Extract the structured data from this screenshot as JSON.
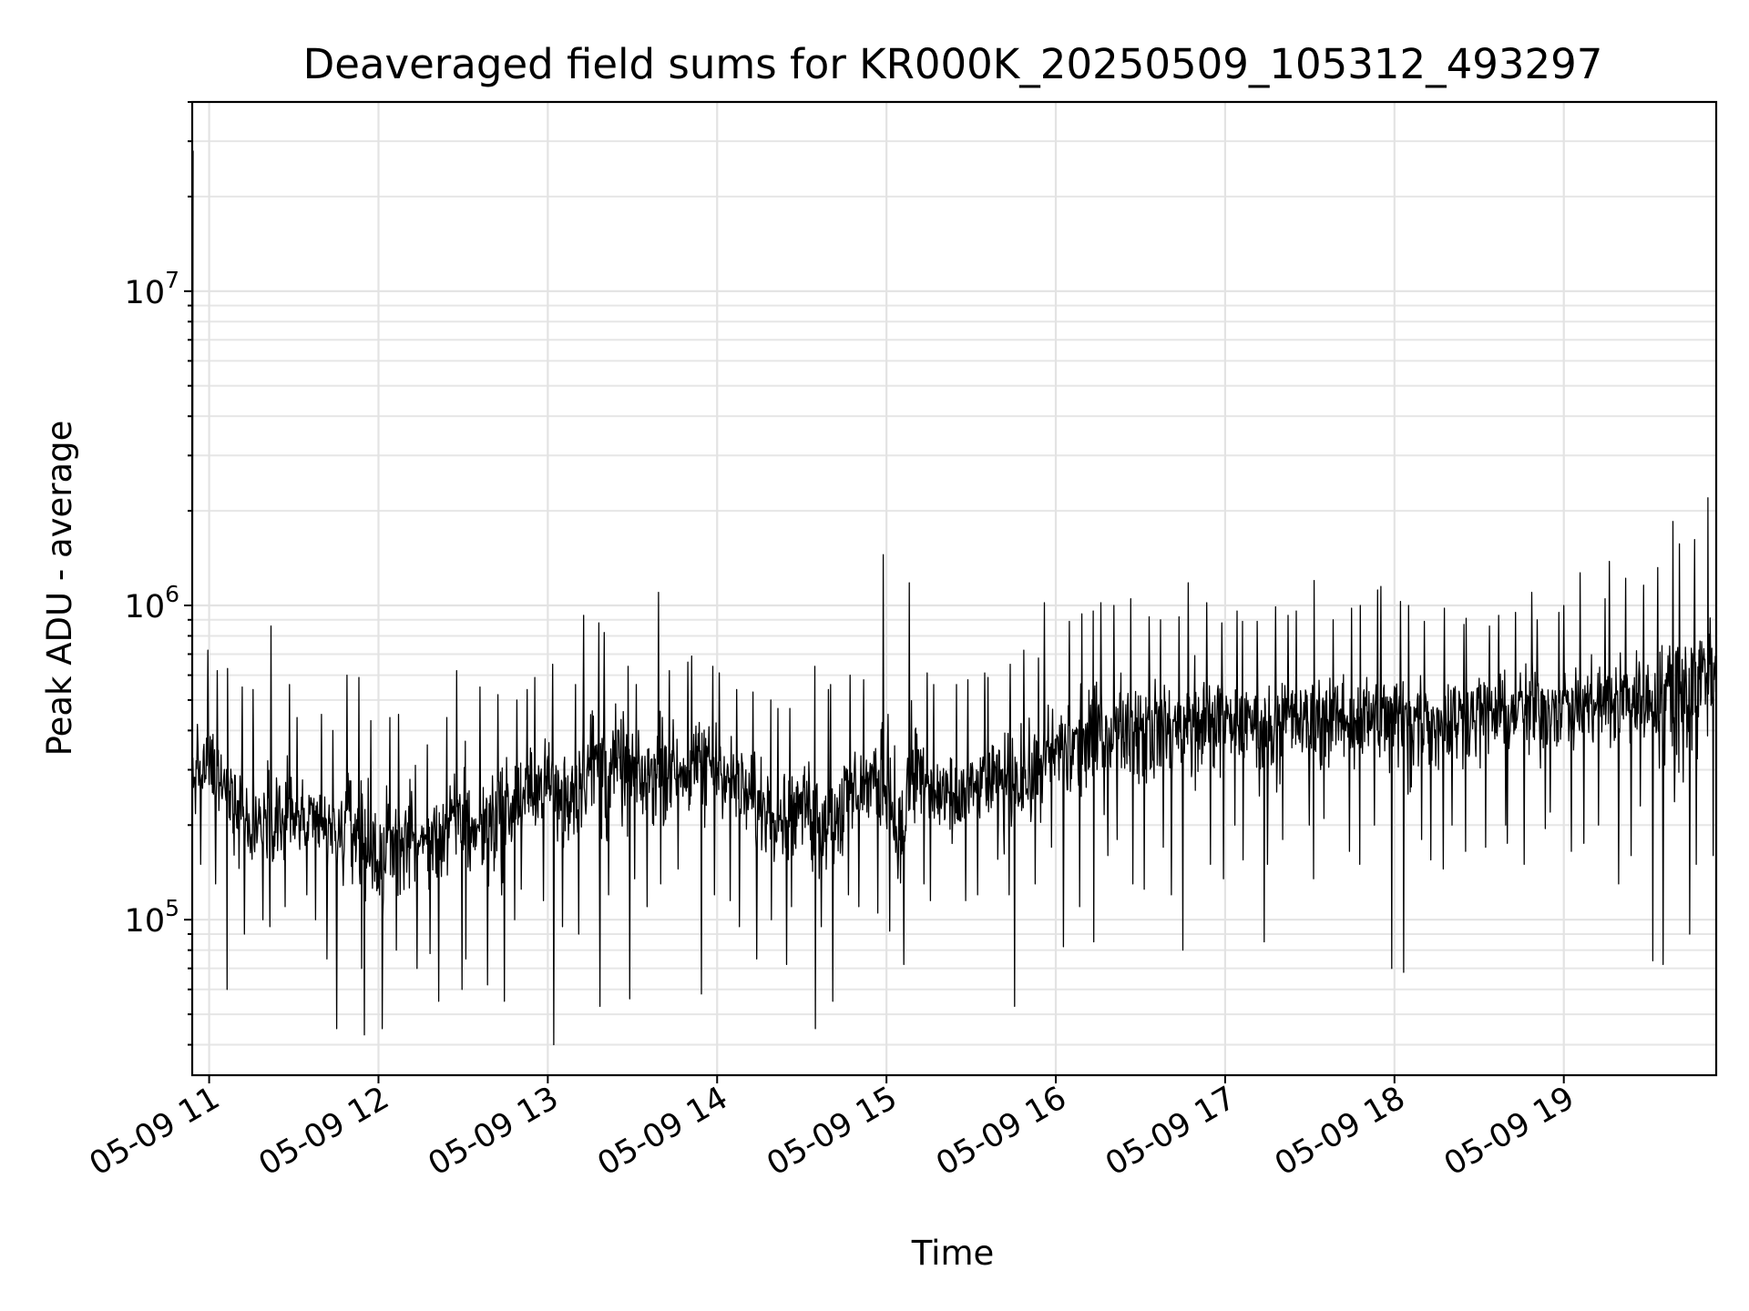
{
  "chart_data": {
    "type": "line",
    "title": "Deaveraged field sums for KR000K_20250509_105312_493297",
    "xlabel": "Time",
    "ylabel": "Peak ADU - average",
    "x_scale": "time",
    "y_scale": "log",
    "xlim": [
      "2025-05-09 10:54",
      "2025-05-09 19:54"
    ],
    "ylim": [
      32000,
      40000000
    ],
    "grid": "on",
    "legend": "none",
    "line_color": "#000000",
    "x_ticks": [
      {
        "label": "05-09 11",
        "value": "2025-05-09 11:00"
      },
      {
        "label": "05-09 12",
        "value": "2025-05-09 12:00"
      },
      {
        "label": "05-09 13",
        "value": "2025-05-09 13:00"
      },
      {
        "label": "05-09 14",
        "value": "2025-05-09 14:00"
      },
      {
        "label": "05-09 15",
        "value": "2025-05-09 15:00"
      },
      {
        "label": "05-09 16",
        "value": "2025-05-09 16:00"
      },
      {
        "label": "05-09 17",
        "value": "2025-05-09 17:00"
      },
      {
        "label": "05-09 18",
        "value": "2025-05-09 18:00"
      },
      {
        "label": "05-09 19",
        "value": "2025-05-09 19:00"
      }
    ],
    "y_ticks": [
      {
        "base": "10",
        "exp": "5",
        "value": 100000
      },
      {
        "base": "10",
        "exp": "6",
        "value": 1000000
      },
      {
        "base": "10",
        "exp": "7",
        "value": 10000000
      }
    ],
    "series": [
      {
        "x": [
          "2025-05-09 10:54",
          "2025-05-09 11:00",
          "2025-05-09 11:05",
          "2025-05-09 11:10",
          "2025-05-09 11:15",
          "2025-05-09 11:20",
          "2025-05-09 11:25",
          "2025-05-09 11:30",
          "2025-05-09 11:35",
          "2025-05-09 11:40",
          "2025-05-09 11:45",
          "2025-05-09 11:50",
          "2025-05-09 11:55",
          "2025-05-09 12:00",
          "2025-05-09 12:05",
          "2025-05-09 12:10",
          "2025-05-09 12:15",
          "2025-05-09 12:20",
          "2025-05-09 12:25",
          "2025-05-09 12:30",
          "2025-05-09 12:35",
          "2025-05-09 12:40",
          "2025-05-09 12:45",
          "2025-05-09 12:50",
          "2025-05-09 12:55",
          "2025-05-09 13:00",
          "2025-05-09 13:05",
          "2025-05-09 13:10",
          "2025-05-09 13:15",
          "2025-05-09 13:20",
          "2025-05-09 13:25",
          "2025-05-09 13:30",
          "2025-05-09 13:35",
          "2025-05-09 13:40",
          "2025-05-09 13:45",
          "2025-05-09 13:50",
          "2025-05-09 13:55",
          "2025-05-09 14:00",
          "2025-05-09 14:05",
          "2025-05-09 14:10",
          "2025-05-09 14:15",
          "2025-05-09 14:20",
          "2025-05-09 14:25",
          "2025-05-09 14:30",
          "2025-05-09 14:35",
          "2025-05-09 14:40",
          "2025-05-09 14:45",
          "2025-05-09 14:50",
          "2025-05-09 14:55",
          "2025-05-09 15:00",
          "2025-05-09 15:05",
          "2025-05-09 15:10",
          "2025-05-09 15:15",
          "2025-05-09 15:20",
          "2025-05-09 15:25",
          "2025-05-09 15:30",
          "2025-05-09 15:35",
          "2025-05-09 15:40",
          "2025-05-09 15:45",
          "2025-05-09 15:50",
          "2025-05-09 15:55",
          "2025-05-09 16:00",
          "2025-05-09 16:05",
          "2025-05-09 16:10",
          "2025-05-09 16:15",
          "2025-05-09 16:20",
          "2025-05-09 16:25",
          "2025-05-09 16:30",
          "2025-05-09 16:35",
          "2025-05-09 16:40",
          "2025-05-09 16:45",
          "2025-05-09 16:50",
          "2025-05-09 16:55",
          "2025-05-09 17:00",
          "2025-05-09 17:05",
          "2025-05-09 17:10",
          "2025-05-09 17:15",
          "2025-05-09 17:20",
          "2025-05-09 17:25",
          "2025-05-09 17:30",
          "2025-05-09 17:35",
          "2025-05-09 17:40",
          "2025-05-09 17:45",
          "2025-05-09 17:50",
          "2025-05-09 17:55",
          "2025-05-09 18:00",
          "2025-05-09 18:05",
          "2025-05-09 18:10",
          "2025-05-09 18:15",
          "2025-05-09 18:20",
          "2025-05-09 18:25",
          "2025-05-09 18:30",
          "2025-05-09 18:35",
          "2025-05-09 18:40",
          "2025-05-09 18:45",
          "2025-05-09 18:50",
          "2025-05-09 18:55",
          "2025-05-09 19:00",
          "2025-05-09 19:05",
          "2025-05-09 19:10",
          "2025-05-09 19:15",
          "2025-05-09 19:20",
          "2025-05-09 19:25",
          "2025-05-09 19:30",
          "2025-05-09 19:35",
          "2025-05-09 19:40",
          "2025-05-09 19:45",
          "2025-05-09 19:50",
          "2025-05-09 19:54"
        ],
        "y": [
          290000,
          300000,
          250000,
          260000,
          180000,
          230000,
          200000,
          210000,
          190000,
          200000,
          180000,
          210000,
          170000,
          160000,
          170000,
          190000,
          175000,
          185000,
          200000,
          210000,
          190000,
          220000,
          230000,
          240000,
          260000,
          280000,
          250000,
          270000,
          330000,
          300000,
          320000,
          290000,
          280000,
          300000,
          310000,
          290000,
          330000,
          320000,
          280000,
          250000,
          240000,
          230000,
          220000,
          240000,
          230000,
          200000,
          250000,
          260000,
          280000,
          270000,
          160000,
          320000,
          250000,
          240000,
          230000,
          260000,
          270000,
          280000,
          300000,
          290000,
          310000,
          340000,
          360000,
          380000,
          400000,
          390000,
          410000,
          420000,
          430000,
          400000,
          420000,
          430000,
          450000,
          440000,
          410000,
          430000,
          420000,
          440000,
          430000,
          410000,
          450000,
          440000,
          430000,
          460000,
          420000,
          450000,
          440000,
          460000,
          430000,
          450000,
          440000,
          470000,
          460000,
          450000,
          480000,
          470000,
          490000,
          480000,
          470000,
          500000,
          480000,
          510000,
          520000,
          500000,
          530000,
          550000,
          580000,
          620000,
          650000
        ],
        "y_range": {
          "mean": [
            290000,
            300000,
            250000,
            260000,
            180000,
            230000,
            200000,
            210000,
            190000,
            200000,
            180000,
            210000,
            170000,
            160000,
            170000,
            190000,
            175000,
            185000,
            200000,
            210000,
            190000,
            220000,
            230000,
            240000,
            260000,
            280000,
            250000,
            270000,
            330000,
            300000,
            320000,
            290000,
            280000,
            300000,
            310000,
            290000,
            330000,
            320000,
            280000,
            250000,
            240000,
            230000,
            220000,
            240000,
            230000,
            200000,
            250000,
            260000,
            280000,
            270000,
            160000,
            320000,
            250000,
            240000,
            230000,
            260000,
            270000,
            280000,
            300000,
            290000,
            310000,
            340000,
            360000,
            380000,
            400000,
            390000,
            410000,
            420000,
            430000,
            400000,
            420000,
            430000,
            450000,
            440000,
            410000,
            430000,
            420000,
            440000,
            430000,
            410000,
            450000,
            440000,
            430000,
            460000,
            420000,
            450000,
            440000,
            460000,
            430000,
            450000,
            440000,
            470000,
            460000,
            450000,
            480000,
            470000,
            490000,
            480000,
            470000,
            500000,
            480000,
            510000,
            520000,
            500000,
            530000,
            550000,
            580000,
            620000,
            650000
          ],
          "high": [
            700000,
            720000,
            620000,
            630000,
            550000,
            540000,
            860000,
            560000,
            440000,
            450000,
            400000,
            600000,
            590000,
            430000,
            440000,
            450000,
            310000,
            360000,
            440000,
            620000,
            370000,
            550000,
            520000,
            500000,
            540000,
            590000,
            650000,
            560000,
            930000,
            880000,
            820000,
            640000,
            560000,
            1100000,
            620000,
            660000,
            690000,
            640000,
            610000,
            540000,
            530000,
            500000,
            470000,
            470000,
            640000,
            540000,
            560000,
            600000,
            580000,
            1450000,
            450000,
            1180000,
            610000,
            560000,
            560000,
            580000,
            610000,
            590000,
            650000,
            720000,
            680000,
            1020000,
            890000,
            940000,
            960000,
            1020000,
            1000000,
            1050000,
            920000,
            900000,
            920000,
            1180000,
            1020000,
            880000,
            960000,
            890000,
            890000,
            990000,
            930000,
            960000,
            1200000,
            900000,
            980000,
            1000000,
            1120000,
            1150000,
            1030000,
            1000000,
            890000,
            980000,
            870000,
            910000,
            860000,
            930000,
            950000,
            1100000,
            900000,
            950000,
            1000000,
            1270000,
            1050000,
            1380000,
            1220000,
            1160000,
            1320000,
            1850000,
            1570000,
            1620000,
            2200000
          ],
          "low": [
            140000,
            150000,
            130000,
            60000,
            90000,
            100000,
            95000,
            110000,
            120000,
            100000,
            75000,
            45000,
            70000,
            43000,
            45000,
            80000,
            70000,
            78000,
            55000,
            60000,
            75000,
            62000,
            55000,
            100000,
            125000,
            115000,
            40000,
            95000,
            90000,
            53000,
            120000,
            56000,
            135000,
            110000,
            130000,
            145000,
            58000,
            120000,
            115000,
            95000,
            75000,
            100000,
            72000,
            110000,
            45000,
            95000,
            55000,
            120000,
            110000,
            105000,
            92000,
            72000,
            130000,
            115000,
            110000,
            115000,
            120000,
            43000,
            120000,
            53000,
            130000,
            170000,
            82000,
            110000,
            85000,
            160000,
            180000,
            130000,
            125000,
            170000,
            120000,
            80000,
            150000,
            135000,
            200000,
            155000,
            85000,
            150000,
            180000,
            200000,
            135000,
            210000,
            165000,
            150000,
            200000,
            70000,
            68000,
            180000,
            155000,
            145000,
            200000,
            165000,
            170000,
            200000,
            175000,
            150000,
            195000,
            220000,
            165000,
            175000,
            200000,
            130000,
            160000,
            230000,
            74000,
            72000,
            90000,
            150000,
            160000
          ]
        }
      }
    ]
  }
}
